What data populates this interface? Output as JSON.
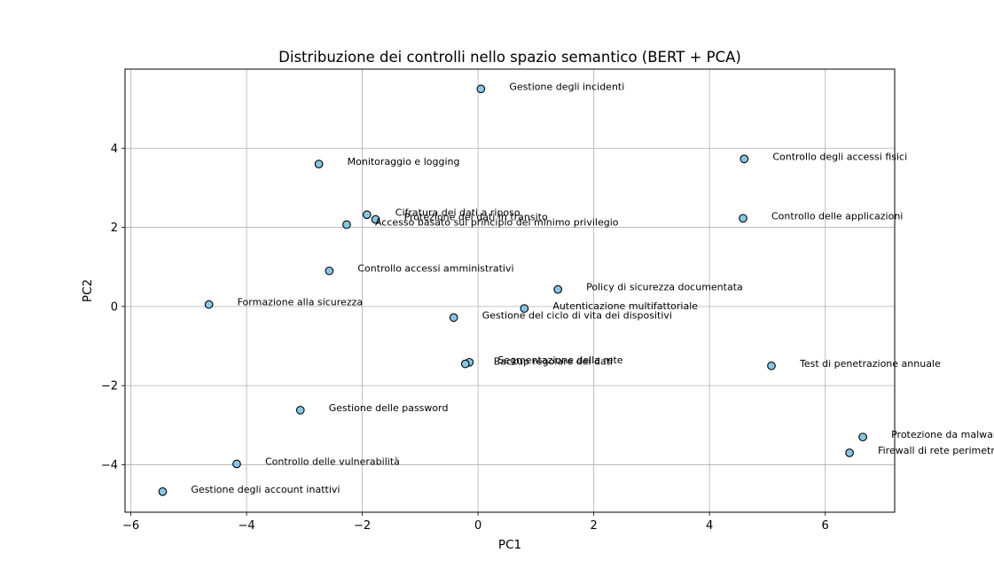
{
  "chart_data": {
    "type": "scatter",
    "title": "Distribuzione dei controlli nello spazio semantico (BERT + PCA)",
    "xlabel": "PC1",
    "ylabel": "PC2",
    "xlim": [
      -6.1,
      7.2
    ],
    "ylim": [
      -5.2,
      6.0
    ],
    "xticks": [
      -6,
      -4,
      -2,
      0,
      2,
      4,
      6
    ],
    "yticks": [
      -4,
      -2,
      0,
      2,
      4
    ],
    "grid": true,
    "marker_color": "#87c7e6",
    "marker_edge_color": "#000000",
    "points": [
      {
        "x": 0.05,
        "y": 5.5,
        "label": "Gestione degli incidenti"
      },
      {
        "x": -2.75,
        "y": 3.6,
        "label": "Monitoraggio e logging"
      },
      {
        "x": 4.6,
        "y": 3.73,
        "label": "Controllo degli accessi fisici"
      },
      {
        "x": -1.92,
        "y": 2.32,
        "label": "Cifratura dei dati a riposo"
      },
      {
        "x": -1.77,
        "y": 2.2,
        "label": "Protezione dei dati in transito"
      },
      {
        "x": -2.27,
        "y": 2.07,
        "label": "Accesso basato sul principio del minimo privilegio"
      },
      {
        "x": 4.58,
        "y": 2.23,
        "label": "Controllo delle applicazioni"
      },
      {
        "x": -2.57,
        "y": 0.9,
        "label": "Controllo accessi amministrativi"
      },
      {
        "x": 1.38,
        "y": 0.43,
        "label": "Policy di sicurezza documentata"
      },
      {
        "x": -4.65,
        "y": 0.05,
        "label": "Formazione alla sicurezza"
      },
      {
        "x": 0.8,
        "y": -0.05,
        "label": "Autenticazione multifattoriale"
      },
      {
        "x": -0.42,
        "y": -0.28,
        "label": "Gestione del ciclo di vita dei dispositivi"
      },
      {
        "x": -0.15,
        "y": -1.41,
        "label": "Segmentazione della rete"
      },
      {
        "x": -0.22,
        "y": -1.45,
        "label": "Backup regolare dei dati"
      },
      {
        "x": 5.07,
        "y": -1.5,
        "label": "Test di penetrazione annuale"
      },
      {
        "x": -3.07,
        "y": -2.62,
        "label": "Gestione delle password"
      },
      {
        "x": 6.65,
        "y": -3.3,
        "label": "Protezione da malware"
      },
      {
        "x": 6.42,
        "y": -3.7,
        "label": "Firewall di rete perimetrale"
      },
      {
        "x": -4.17,
        "y": -3.98,
        "label": "Controllo delle vulnerabilità"
      },
      {
        "x": -5.45,
        "y": -4.68,
        "label": "Gestione degli account inattivi"
      }
    ]
  }
}
